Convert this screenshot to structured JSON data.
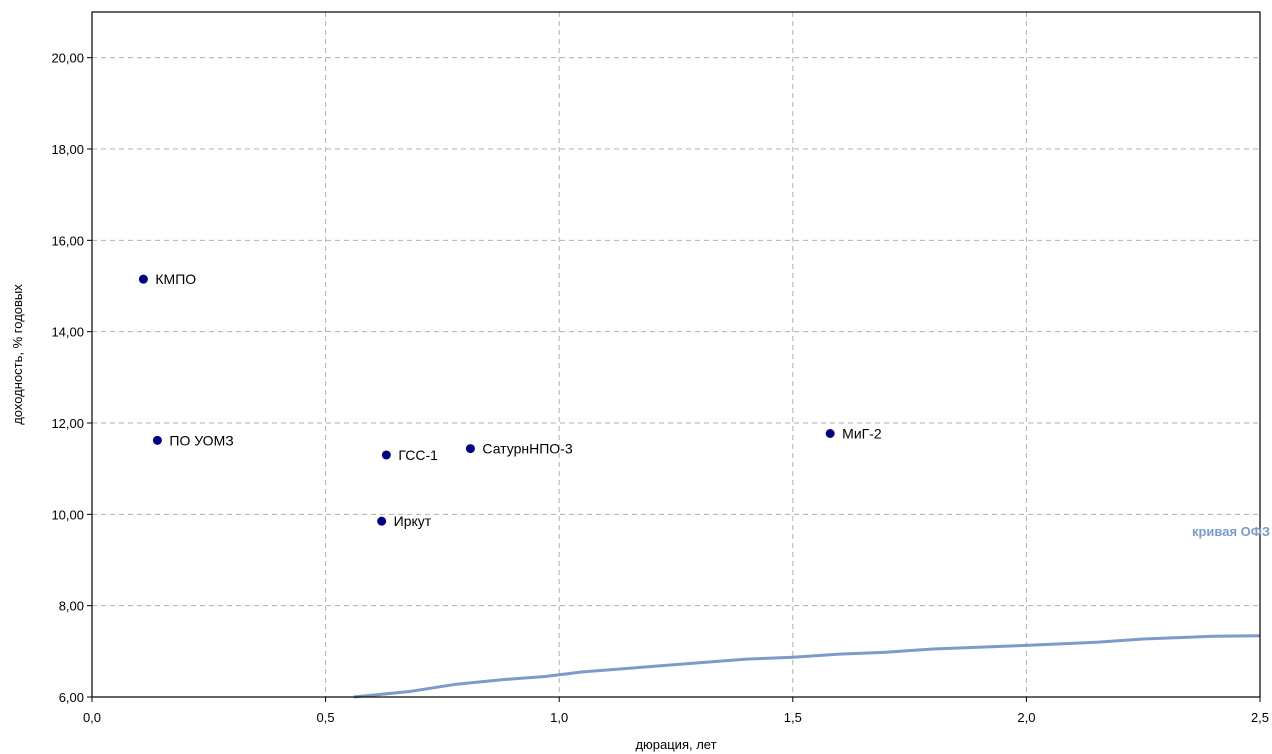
{
  "chart_data": {
    "type": "scatter",
    "title": "",
    "xlabel": "дюрация, лет",
    "ylabel": "доходность, % годовых",
    "xlim": [
      0,
      2.5
    ],
    "ylim": [
      6,
      21
    ],
    "x_ticks": [
      0,
      0.5,
      1.0,
      1.5,
      2.0,
      2.5
    ],
    "x_tick_labels": [
      "0,0",
      "0,5",
      "1,0",
      "1,5",
      "2,0",
      "2,5"
    ],
    "y_ticks": [
      6,
      8,
      10,
      12,
      14,
      16,
      18,
      20
    ],
    "y_tick_labels": [
      "6,00",
      "8,00",
      "10,00",
      "12,00",
      "14,00",
      "16,00",
      "18,00",
      "20,00"
    ],
    "grid": true,
    "point_color": "#000080",
    "points": [
      {
        "label": "КМПО",
        "x": 0.11,
        "y": 15.15
      },
      {
        "label": "ПО УОМЗ",
        "x": 0.14,
        "y": 11.62
      },
      {
        "label": "ГСС-1",
        "x": 0.63,
        "y": 11.3
      },
      {
        "label": "Иркут",
        "x": 0.62,
        "y": 9.85
      },
      {
        "label": "СатурнНПО-3",
        "x": 0.81,
        "y": 11.44
      },
      {
        "label": "МиГ-2",
        "x": 1.58,
        "y": 11.77
      }
    ],
    "curve": {
      "name": "кривая ОФЗ",
      "color": "#7b9cc8",
      "x": [
        0.56,
        0.68,
        0.78,
        0.88,
        0.97,
        1.05,
        1.2,
        1.4,
        1.5,
        1.6,
        1.7,
        1.8,
        2.0,
        2.15,
        2.25,
        2.4,
        2.5
      ],
      "y": [
        6.0,
        6.12,
        6.28,
        6.38,
        6.45,
        6.55,
        6.67,
        6.83,
        6.87,
        6.94,
        6.98,
        7.05,
        7.13,
        7.2,
        7.27,
        7.33,
        7.34
      ]
    }
  }
}
